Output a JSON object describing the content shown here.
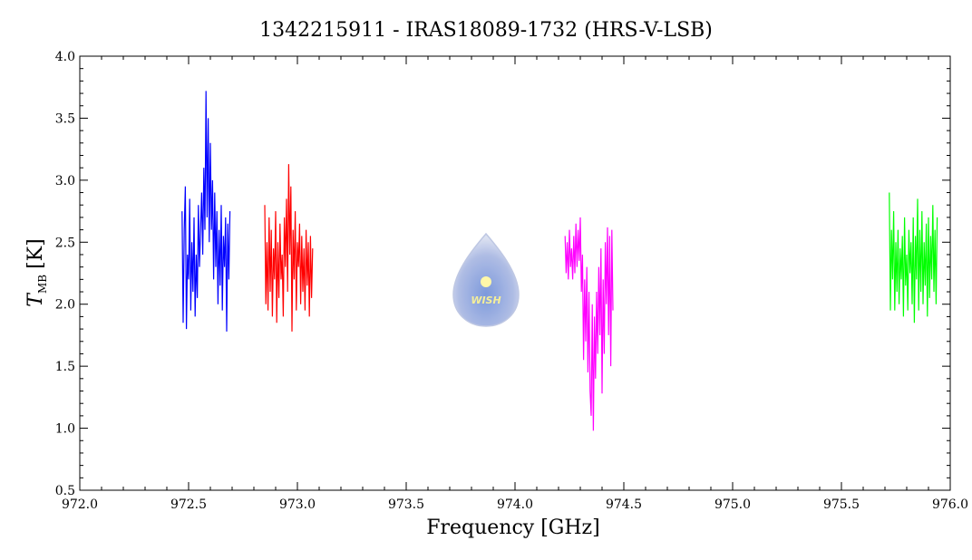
{
  "chart_data": {
    "type": "line",
    "title": "1342215911 - IRAS18089-1732 (HRS-V-LSB)",
    "xlabel": "Frequency [GHz]",
    "ylabel": {
      "symbol": "T",
      "subscript": "MB",
      "unit": "[K]"
    },
    "logo": "WISH",
    "xlim": [
      972.0,
      976.0
    ],
    "xticks": [
      {
        "value": 972,
        "label": "972.0"
      },
      {
        "value": 972.5,
        "label": "972.5"
      },
      {
        "value": 973,
        "label": "973.0"
      },
      {
        "value": 973.5,
        "label": "973.5"
      },
      {
        "value": 974,
        "label": "974.0"
      },
      {
        "value": 974.5,
        "label": "974.5"
      },
      {
        "value": 975,
        "label": "975.0"
      },
      {
        "value": 975.5,
        "label": "975.5"
      },
      {
        "value": 976,
        "label": "976.0"
      }
    ],
    "ylim": [
      0.5,
      4.0
    ],
    "yticks": [
      0.5,
      {
        "value": 1,
        "label": "1.0"
      },
      1.5,
      {
        "value": 2,
        "label": "2.0"
      },
      2.5,
      {
        "value": 3,
        "label": "3.0"
      },
      3.5,
      {
        "value": 4,
        "label": "4.0"
      }
    ],
    "series": [
      {
        "color": "#0000ff",
        "x": [
          972.47,
          972.475,
          972.48,
          972.485,
          972.49,
          972.495,
          972.5,
          972.505,
          972.51,
          972.515,
          972.52,
          972.525,
          972.53,
          972.535,
          972.54,
          972.545,
          972.55,
          972.555,
          972.56,
          972.565,
          972.57,
          972.575,
          972.58,
          972.585,
          972.59,
          972.595,
          972.6,
          972.605,
          972.61,
          972.615,
          972.62,
          972.625,
          972.63,
          972.635,
          972.64,
          972.645,
          972.65,
          972.655,
          972.66,
          972.665,
          972.67,
          972.675,
          972.68,
          972.685,
          972.69
        ],
        "values": [
          2.75,
          1.85,
          2.6,
          2.95,
          1.8,
          2.4,
          2.2,
          2.85,
          1.95,
          2.5,
          2.1,
          2.7,
          1.9,
          2.4,
          2.05,
          2.8,
          2.3,
          2.6,
          2.9,
          2.4,
          3.1,
          2.6,
          3.72,
          2.7,
          3.5,
          2.5,
          3.3,
          2.6,
          3.0,
          2.2,
          2.9,
          2.3,
          2.75,
          2.0,
          2.6,
          2.15,
          2.8,
          1.95,
          2.55,
          2.3,
          2.7,
          1.78,
          2.65,
          2.2,
          2.75
        ]
      },
      {
        "color": "#ff0000",
        "x": [
          972.85,
          972.855,
          972.86,
          972.865,
          972.87,
          972.875,
          972.88,
          972.885,
          972.89,
          972.895,
          972.9,
          972.905,
          972.91,
          972.915,
          972.92,
          972.925,
          972.93,
          972.935,
          972.94,
          972.945,
          972.95,
          972.955,
          972.96,
          972.965,
          972.97,
          972.975,
          972.98,
          972.985,
          972.99,
          972.995,
          973.0,
          973.005,
          973.01,
          973.015,
          973.02,
          973.025,
          973.03,
          973.035,
          973.04,
          973.045,
          973.05,
          973.055,
          973.06,
          973.065,
          973.07
        ],
        "values": [
          2.8,
          2.0,
          2.5,
          1.95,
          2.7,
          2.1,
          2.6,
          1.9,
          2.45,
          2.2,
          2.75,
          1.85,
          2.5,
          2.05,
          2.65,
          2.2,
          2.4,
          1.9,
          2.7,
          2.3,
          2.85,
          2.1,
          3.13,
          2.4,
          2.95,
          1.78,
          2.6,
          2.2,
          2.75,
          1.95,
          2.5,
          2.3,
          2.65,
          2.0,
          2.55,
          2.1,
          2.45,
          1.95,
          2.6,
          2.15,
          2.5,
          1.9,
          2.55,
          2.05,
          2.45
        ]
      },
      {
        "color": "#ff00ff",
        "x": [
          974.23,
          974.235,
          974.24,
          974.245,
          974.25,
          974.255,
          974.26,
          974.265,
          974.27,
          974.275,
          974.28,
          974.285,
          974.29,
          974.295,
          974.3,
          974.305,
          974.31,
          974.315,
          974.32,
          974.325,
          974.33,
          974.335,
          974.34,
          974.345,
          974.35,
          974.355,
          974.36,
          974.365,
          974.37,
          974.375,
          974.38,
          974.385,
          974.39,
          974.395,
          974.4,
          974.405,
          974.41,
          974.415,
          974.42,
          974.425,
          974.43,
          974.435,
          974.44,
          974.445,
          974.45
        ],
        "values": [
          2.55,
          2.25,
          2.5,
          2.2,
          2.6,
          2.3,
          2.45,
          2.2,
          2.55,
          2.25,
          2.65,
          2.3,
          2.6,
          2.35,
          2.7,
          2.1,
          2.4,
          1.55,
          2.2,
          1.7,
          2.3,
          1.45,
          2.1,
          1.3,
          1.1,
          2.0,
          0.98,
          1.9,
          1.4,
          2.1,
          1.6,
          2.3,
          1.75,
          2.45,
          1.28,
          2.2,
          1.6,
          2.5,
          2.0,
          2.62,
          1.75,
          2.55,
          1.5,
          2.6,
          1.95
        ]
      },
      {
        "color": "#00ff00",
        "x": [
          975.72,
          975.725,
          975.73,
          975.735,
          975.74,
          975.745,
          975.75,
          975.755,
          975.76,
          975.765,
          975.77,
          975.775,
          975.78,
          975.785,
          975.79,
          975.795,
          975.8,
          975.805,
          975.81,
          975.815,
          975.82,
          975.825,
          975.83,
          975.835,
          975.84,
          975.845,
          975.85,
          975.855,
          975.86,
          975.865,
          975.87,
          975.875,
          975.88,
          975.885,
          975.89,
          975.895,
          975.9,
          975.905,
          975.91,
          975.915,
          975.92,
          975.925,
          975.93,
          975.935,
          975.94
        ],
        "values": [
          2.9,
          1.95,
          2.6,
          2.2,
          2.75,
          1.95,
          2.5,
          2.1,
          2.6,
          2.0,
          2.45,
          2.2,
          2.55,
          1.9,
          2.7,
          2.15,
          2.4,
          1.95,
          2.6,
          2.25,
          2.5,
          2.0,
          2.7,
          1.85,
          2.55,
          2.2,
          2.85,
          1.95,
          2.6,
          2.1,
          2.75,
          2.0,
          2.5,
          2.15,
          2.65,
          1.9,
          2.7,
          2.05,
          2.55,
          2.2,
          2.8,
          2.1,
          2.6,
          2.0,
          2.7
        ]
      }
    ]
  }
}
